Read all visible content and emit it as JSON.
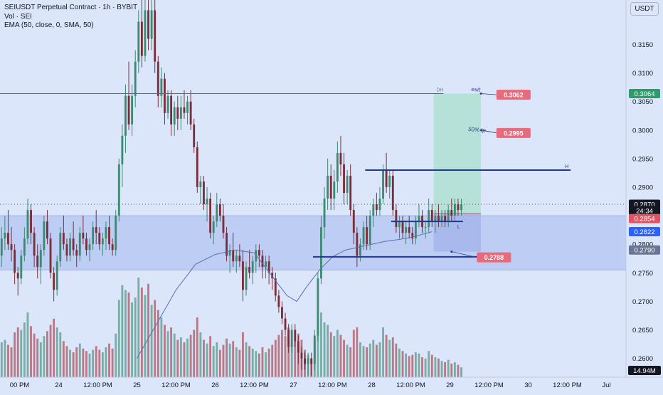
{
  "legend": {
    "symbol": "SEIUSDT Perpetual Contract · 1h · BYBIT",
    "volume": "Vol · SEI",
    "ema": "EMA (50, close, 0, SMA, 50)"
  },
  "currency_button": "USDT",
  "colors": {
    "background": "#dbe6fb",
    "up": "#26a69a",
    "down": "#ef5350",
    "candle_up": "#3c8a72",
    "candle_down": "#7a2e3a",
    "volume_up": "#6aa79a",
    "volume_down": "#b46c78",
    "ema": "#5b6fb0",
    "zone": "#b9c8f2",
    "target_zone": "#b4e0d6",
    "stop_zone": "#a9b7ea",
    "level_line": "#1f3a8a",
    "price_label_red": "#e96a7a",
    "price_label_green": "#2e9c6a",
    "price_label_blue": "#2962ff"
  },
  "chart_data": {
    "type": "candlestick",
    "symbol": "SEIUSDT",
    "interval": "1h",
    "y_axis_ticks": [
      0.26,
      0.265,
      0.27,
      0.275,
      0.28,
      0.285,
      0.29,
      0.295,
      0.3,
      0.305,
      0.31,
      0.315
    ],
    "y_axis_tick_labels": [
      "0.2600",
      "0.2650",
      "0.2700",
      "0.2750",
      "0.2800",
      "0.2850",
      "0.2900",
      "0.2950",
      "0.3000",
      "0.3050",
      "0.3100",
      "0.3150"
    ],
    "ylim": [
      0.2567,
      0.3228
    ],
    "x_axis_ticks": [
      {
        "hours": 12,
        "label": "00 PM"
      },
      {
        "hours": 24,
        "label": "24"
      },
      {
        "hours": 36,
        "label": "12:00 PM"
      },
      {
        "hours": 48,
        "label": "25"
      },
      {
        "hours": 60,
        "label": "12:00 PM"
      },
      {
        "hours": 72,
        "label": "26"
      },
      {
        "hours": 84,
        "label": "12:00 PM"
      },
      {
        "hours": 96,
        "label": "27"
      },
      {
        "hours": 108,
        "label": "12:00 PM"
      },
      {
        "hours": 120,
        "label": "28"
      },
      {
        "hours": 132,
        "label": "12:00 PM"
      },
      {
        "hours": 144,
        "label": "29"
      },
      {
        "hours": 156,
        "label": "12:00 PM"
      },
      {
        "hours": 168,
        "label": "30"
      },
      {
        "hours": 180,
        "label": "12:00 PM"
      },
      {
        "hours": 192,
        "label": "Jul"
      }
    ],
    "x_range_hours": [
      6,
      198
    ],
    "candles": [
      [
        0.278,
        0.283,
        0.276,
        0.281,
        28
      ],
      [
        0.281,
        0.285,
        0.279,
        0.282,
        30
      ],
      [
        0.282,
        0.286,
        0.279,
        0.28,
        26
      ],
      [
        0.28,
        0.283,
        0.277,
        0.279,
        24
      ],
      [
        0.279,
        0.28,
        0.273,
        0.275,
        36
      ],
      [
        0.275,
        0.276,
        0.271,
        0.274,
        40
      ],
      [
        0.274,
        0.279,
        0.273,
        0.278,
        38
      ],
      [
        0.278,
        0.283,
        0.277,
        0.281,
        44
      ],
      [
        0.281,
        0.288,
        0.28,
        0.286,
        52
      ],
      [
        0.286,
        0.287,
        0.28,
        0.282,
        41
      ],
      [
        0.282,
        0.283,
        0.276,
        0.278,
        35
      ],
      [
        0.278,
        0.28,
        0.274,
        0.276,
        31
      ],
      [
        0.276,
        0.28,
        0.273,
        0.279,
        28
      ],
      [
        0.279,
        0.285,
        0.278,
        0.284,
        33
      ],
      [
        0.284,
        0.286,
        0.28,
        0.281,
        37
      ],
      [
        0.281,
        0.282,
        0.274,
        0.275,
        42
      ],
      [
        0.275,
        0.276,
        0.27,
        0.272,
        47
      ],
      [
        0.272,
        0.278,
        0.271,
        0.277,
        40
      ],
      [
        0.277,
        0.283,
        0.276,
        0.282,
        36
      ],
      [
        0.282,
        0.285,
        0.279,
        0.28,
        29
      ],
      [
        0.28,
        0.281,
        0.277,
        0.278,
        25
      ],
      [
        0.278,
        0.282,
        0.277,
        0.281,
        22
      ],
      [
        0.281,
        0.284,
        0.278,
        0.279,
        20
      ],
      [
        0.279,
        0.28,
        0.276,
        0.278,
        24
      ],
      [
        0.278,
        0.283,
        0.277,
        0.282,
        27
      ],
      [
        0.282,
        0.285,
        0.28,
        0.281,
        23
      ],
      [
        0.281,
        0.282,
        0.278,
        0.279,
        21
      ],
      [
        0.279,
        0.281,
        0.277,
        0.28,
        19
      ],
      [
        0.28,
        0.284,
        0.279,
        0.283,
        22
      ],
      [
        0.283,
        0.286,
        0.28,
        0.282,
        25
      ],
      [
        0.282,
        0.283,
        0.279,
        0.28,
        22
      ],
      [
        0.28,
        0.282,
        0.278,
        0.281,
        20
      ],
      [
        0.281,
        0.284,
        0.279,
        0.283,
        24
      ],
      [
        0.283,
        0.285,
        0.279,
        0.28,
        27
      ],
      [
        0.28,
        0.281,
        0.278,
        0.279,
        23
      ],
      [
        0.279,
        0.286,
        0.278,
        0.285,
        35
      ],
      [
        0.285,
        0.295,
        0.284,
        0.294,
        62
      ],
      [
        0.294,
        0.301,
        0.29,
        0.299,
        74
      ],
      [
        0.299,
        0.308,
        0.296,
        0.306,
        70
      ],
      [
        0.306,
        0.312,
        0.3,
        0.301,
        68
      ],
      [
        0.301,
        0.308,
        0.299,
        0.306,
        60
      ],
      [
        0.306,
        0.314,
        0.304,
        0.312,
        64
      ],
      [
        0.312,
        0.321,
        0.31,
        0.319,
        80
      ],
      [
        0.319,
        0.323,
        0.311,
        0.313,
        72
      ],
      [
        0.313,
        0.324,
        0.312,
        0.321,
        66
      ],
      [
        0.321,
        0.324,
        0.314,
        0.316,
        75
      ],
      [
        0.316,
        0.323,
        0.314,
        0.321,
        58
      ],
      [
        0.321,
        0.323,
        0.31,
        0.312,
        62
      ],
      [
        0.312,
        0.313,
        0.304,
        0.306,
        54
      ],
      [
        0.306,
        0.311,
        0.304,
        0.309,
        48
      ],
      [
        0.309,
        0.31,
        0.301,
        0.303,
        42
      ],
      [
        0.303,
        0.307,
        0.302,
        0.306,
        37
      ],
      [
        0.306,
        0.307,
        0.299,
        0.301,
        40
      ],
      [
        0.301,
        0.305,
        0.299,
        0.304,
        35
      ],
      [
        0.304,
        0.306,
        0.3,
        0.302,
        30
      ],
      [
        0.302,
        0.306,
        0.3,
        0.304,
        32
      ],
      [
        0.304,
        0.307,
        0.302,
        0.303,
        28
      ],
      [
        0.303,
        0.306,
        0.301,
        0.305,
        31
      ],
      [
        0.305,
        0.307,
        0.3,
        0.301,
        34
      ],
      [
        0.301,
        0.302,
        0.296,
        0.297,
        38
      ],
      [
        0.297,
        0.298,
        0.289,
        0.29,
        48
      ],
      [
        0.29,
        0.292,
        0.287,
        0.291,
        36
      ],
      [
        0.291,
        0.292,
        0.286,
        0.287,
        30
      ],
      [
        0.287,
        0.29,
        0.284,
        0.288,
        27
      ],
      [
        0.288,
        0.289,
        0.281,
        0.282,
        33
      ],
      [
        0.282,
        0.285,
        0.28,
        0.284,
        25
      ],
      [
        0.284,
        0.289,
        0.283,
        0.287,
        28
      ],
      [
        0.287,
        0.288,
        0.284,
        0.285,
        22
      ],
      [
        0.285,
        0.287,
        0.281,
        0.282,
        26
      ],
      [
        0.282,
        0.283,
        0.277,
        0.278,
        31
      ],
      [
        0.278,
        0.28,
        0.275,
        0.279,
        27
      ],
      [
        0.279,
        0.282,
        0.276,
        0.277,
        29
      ],
      [
        0.277,
        0.279,
        0.275,
        0.278,
        24
      ],
      [
        0.278,
        0.28,
        0.276,
        0.277,
        22
      ],
      [
        0.277,
        0.279,
        0.27,
        0.272,
        36
      ],
      [
        0.272,
        0.277,
        0.271,
        0.276,
        28
      ],
      [
        0.276,
        0.279,
        0.274,
        0.275,
        25
      ],
      [
        0.275,
        0.278,
        0.273,
        0.277,
        23
      ],
      [
        0.277,
        0.28,
        0.275,
        0.279,
        21
      ],
      [
        0.279,
        0.28,
        0.276,
        0.278,
        19
      ],
      [
        0.278,
        0.279,
        0.274,
        0.276,
        24
      ],
      [
        0.276,
        0.278,
        0.274,
        0.277,
        20
      ],
      [
        0.277,
        0.278,
        0.273,
        0.275,
        23
      ],
      [
        0.275,
        0.276,
        0.272,
        0.274,
        26
      ],
      [
        0.274,
        0.275,
        0.27,
        0.271,
        30
      ],
      [
        0.271,
        0.272,
        0.268,
        0.269,
        34
      ],
      [
        0.269,
        0.27,
        0.266,
        0.267,
        38
      ],
      [
        0.267,
        0.268,
        0.264,
        0.265,
        33
      ],
      [
        0.265,
        0.266,
        0.261,
        0.262,
        40
      ],
      [
        0.262,
        0.266,
        0.261,
        0.265,
        27
      ],
      [
        0.265,
        0.266,
        0.262,
        0.263,
        29
      ],
      [
        0.263,
        0.264,
        0.259,
        0.261,
        35
      ],
      [
        0.261,
        0.262,
        0.258,
        0.26,
        30
      ],
      [
        0.26,
        0.261,
        0.258,
        0.259,
        22
      ],
      [
        0.259,
        0.261,
        0.257,
        0.26,
        18
      ],
      [
        0.26,
        0.261,
        0.257,
        0.259,
        15
      ],
      [
        0.259,
        0.265,
        0.258,
        0.264,
        30
      ],
      [
        0.264,
        0.275,
        0.263,
        0.274,
        47
      ],
      [
        0.274,
        0.285,
        0.273,
        0.283,
        52
      ],
      [
        0.283,
        0.29,
        0.281,
        0.288,
        44
      ],
      [
        0.288,
        0.295,
        0.286,
        0.292,
        42
      ],
      [
        0.292,
        0.294,
        0.286,
        0.288,
        36
      ],
      [
        0.288,
        0.293,
        0.286,
        0.291,
        33
      ],
      [
        0.291,
        0.298,
        0.289,
        0.296,
        38
      ],
      [
        0.296,
        0.299,
        0.292,
        0.294,
        34
      ],
      [
        0.294,
        0.296,
        0.287,
        0.289,
        30
      ],
      [
        0.289,
        0.293,
        0.287,
        0.292,
        26
      ],
      [
        0.292,
        0.294,
        0.285,
        0.286,
        24
      ],
      [
        0.286,
        0.287,
        0.28,
        0.282,
        38
      ],
      [
        0.282,
        0.283,
        0.276,
        0.278,
        40
      ],
      [
        0.278,
        0.281,
        0.277,
        0.28,
        28
      ],
      [
        0.28,
        0.284,
        0.279,
        0.283,
        25
      ],
      [
        0.283,
        0.285,
        0.279,
        0.28,
        24
      ],
      [
        0.28,
        0.286,
        0.279,
        0.285,
        27
      ],
      [
        0.285,
        0.288,
        0.283,
        0.287,
        30
      ],
      [
        0.287,
        0.289,
        0.285,
        0.286,
        26
      ],
      [
        0.286,
        0.29,
        0.285,
        0.288,
        28
      ],
      [
        0.288,
        0.294,
        0.287,
        0.293,
        40
      ],
      [
        0.293,
        0.296,
        0.289,
        0.29,
        34
      ],
      [
        0.29,
        0.293,
        0.288,
        0.292,
        30
      ],
      [
        0.292,
        0.293,
        0.285,
        0.286,
        32
      ],
      [
        0.286,
        0.287,
        0.282,
        0.283,
        27
      ],
      [
        0.283,
        0.285,
        0.281,
        0.284,
        23
      ],
      [
        0.284,
        0.285,
        0.281,
        0.282,
        21
      ],
      [
        0.282,
        0.284,
        0.28,
        0.283,
        19
      ],
      [
        0.283,
        0.285,
        0.281,
        0.282,
        17
      ],
      [
        0.282,
        0.283,
        0.28,
        0.281,
        18
      ],
      [
        0.281,
        0.285,
        0.28,
        0.284,
        20
      ],
      [
        0.284,
        0.287,
        0.283,
        0.285,
        19
      ],
      [
        0.285,
        0.286,
        0.282,
        0.283,
        16
      ],
      [
        0.283,
        0.284,
        0.281,
        0.283,
        15
      ],
      [
        0.283,
        0.288,
        0.282,
        0.286,
        21
      ],
      [
        0.286,
        0.287,
        0.283,
        0.284,
        18
      ],
      [
        0.284,
        0.286,
        0.282,
        0.285,
        16
      ],
      [
        0.285,
        0.287,
        0.283,
        0.284,
        15
      ],
      [
        0.284,
        0.286,
        0.283,
        0.285,
        13
      ],
      [
        0.285,
        0.286,
        0.283,
        0.284,
        12
      ],
      [
        0.284,
        0.287,
        0.283,
        0.286,
        14
      ],
      [
        0.286,
        0.288,
        0.284,
        0.285,
        11
      ],
      [
        0.285,
        0.288,
        0.284,
        0.287,
        12
      ],
      [
        0.287,
        0.288,
        0.285,
        0.286,
        10
      ],
      [
        0.286,
        0.288,
        0.285,
        0.287,
        8
      ]
    ],
    "candle_start_hours": 6.5,
    "ema_points": [
      [
        48,
        0.26
      ],
      [
        54,
        0.266
      ],
      [
        60,
        0.272
      ],
      [
        66,
        0.2765
      ],
      [
        72,
        0.2782
      ],
      [
        78,
        0.279
      ],
      [
        84,
        0.2785
      ],
      [
        90,
        0.274
      ],
      [
        94,
        0.271
      ],
      [
        97,
        0.27
      ],
      [
        100,
        0.2725
      ],
      [
        104,
        0.2755
      ],
      [
        108,
        0.2778
      ],
      [
        112,
        0.279
      ],
      [
        116,
        0.2795
      ],
      [
        120,
        0.28
      ],
      [
        124,
        0.2805
      ],
      [
        128,
        0.2808
      ],
      [
        132,
        0.2812
      ],
      [
        136,
        0.2818
      ],
      [
        138.5,
        0.2822
      ]
    ],
    "lines": [
      {
        "y": 0.3064,
        "x1": 6,
        "x2": 142,
        "label": "DH"
      },
      {
        "y": 0.293,
        "x1": 118,
        "x2": 181,
        "label": "H"
      },
      {
        "y": 0.284,
        "x1": 126,
        "x2": 148,
        "label": "L"
      },
      {
        "y": 0.2778,
        "x1": 102,
        "x2": 155,
        "label": ""
      }
    ],
    "zones": [
      {
        "y1": 0.285,
        "y2": 0.2755,
        "x1": 6,
        "x2": 198
      },
      {
        "y1": 0.3064,
        "y2": 0.2854,
        "x1": 139,
        "x2": 153.5
      },
      {
        "y1": 0.2854,
        "y2": 0.2787,
        "x1": 139,
        "x2": 153.5
      }
    ],
    "annotations": [
      {
        "text": "exit",
        "x": 150.5,
        "y": 0.3066
      },
      {
        "text": "50% tp",
        "x": 149.5,
        "y": 0.2996
      }
    ],
    "target_labels": [
      {
        "value": "0.3062",
        "x": 163.5,
        "y": 0.3062
      },
      {
        "value": "0.2995",
        "x": 163.5,
        "y": 0.2995
      },
      {
        "value": "0.2788",
        "x": 157.5,
        "y": 0.2777
      }
    ],
    "price_scale_labels": [
      {
        "text": "0.3064",
        "y": 0.3064,
        "color": "green"
      },
      {
        "text": "0.2870",
        "y": 0.287,
        "color": "dark"
      },
      {
        "text": "24:34",
        "y": 0.2859,
        "color": "dark"
      },
      {
        "text": "0.2854",
        "y": 0.2845,
        "color": "red"
      },
      {
        "text": "0.2822",
        "y": 0.2822,
        "color": "blue"
      },
      {
        "text": "0.2790",
        "y": 0.279,
        "color": "slate"
      }
    ],
    "volume_label": "14.94M",
    "current_price": 0.287
  }
}
